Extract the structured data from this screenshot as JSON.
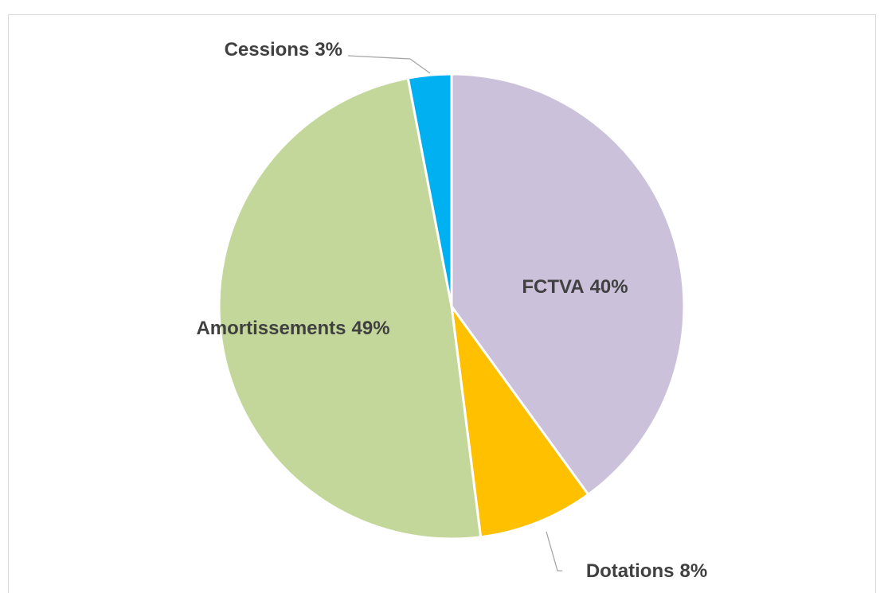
{
  "chart_data": {
    "type": "pie",
    "categories": [
      "FCTVA",
      "Dotations",
      "Amortissements",
      "Cessions"
    ],
    "values": [
      40,
      8,
      49,
      3
    ],
    "value_labels": [
      "40%",
      "8%",
      "49%",
      "3%"
    ],
    "colors": [
      "#ccc1da",
      "#ffc000",
      "#c4d79b",
      "#00b0f0"
    ]
  }
}
